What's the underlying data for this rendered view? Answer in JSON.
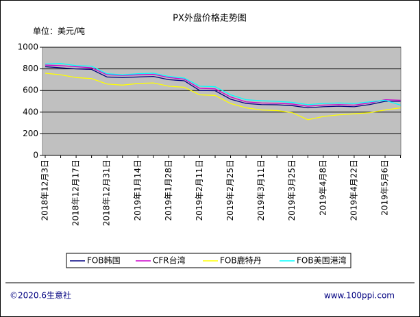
{
  "chart_data": {
    "type": "line",
    "title": "PX外盘价格走势图",
    "unit_label": "单位：美元/吨",
    "categories": [
      "2018年12月3日",
      null,
      "2018年12月17日",
      null,
      "2018年12月31日",
      null,
      "2019年1月14日",
      null,
      "2019年1月28日",
      null,
      "2019年2月11日",
      null,
      "2019年2月25日",
      null,
      "2019年3月11日",
      null,
      "2019年3月25日",
      null,
      "2019年4月8日",
      null,
      "2019年4月22日",
      null,
      "2019年5月6日",
      null
    ],
    "series": [
      {
        "name": "FOB韩国",
        "color": "#000080",
        "values": [
          820,
          810,
          800,
          795,
          725,
          720,
          725,
          730,
          700,
          690,
          600,
          598,
          520,
          480,
          470,
          468,
          460,
          440,
          450,
          455,
          450,
          470,
          500,
          500
        ]
      },
      {
        "name": "CFR台湾",
        "color": "#cc00cc",
        "values": [
          835,
          830,
          820,
          810,
          745,
          740,
          745,
          750,
          720,
          705,
          620,
          615,
          540,
          495,
          485,
          482,
          475,
          455,
          465,
          470,
          465,
          485,
          515,
          510
        ]
      },
      {
        "name": "FOB鹿特丹",
        "color": "#ffff00",
        "values": [
          760,
          745,
          720,
          710,
          660,
          650,
          665,
          670,
          640,
          630,
          560,
          555,
          480,
          440,
          420,
          415,
          395,
          330,
          360,
          375,
          385,
          395,
          420,
          440
        ]
      },
      {
        "name": "FOB美国港湾",
        "color": "#00ffff",
        "values": [
          845,
          850,
          830,
          825,
          755,
          745,
          755,
          760,
          730,
          715,
          640,
          635,
          560,
          515,
          505,
          500,
          490,
          470,
          480,
          485,
          480,
          495,
          510,
          465
        ]
      }
    ],
    "ylim": [
      0,
      1000
    ],
    "yticks": [
      0,
      200,
      400,
      600,
      800,
      1000
    ],
    "grid": true,
    "copyright": "©2020.6生意社",
    "website": "www.100ppi.com"
  }
}
